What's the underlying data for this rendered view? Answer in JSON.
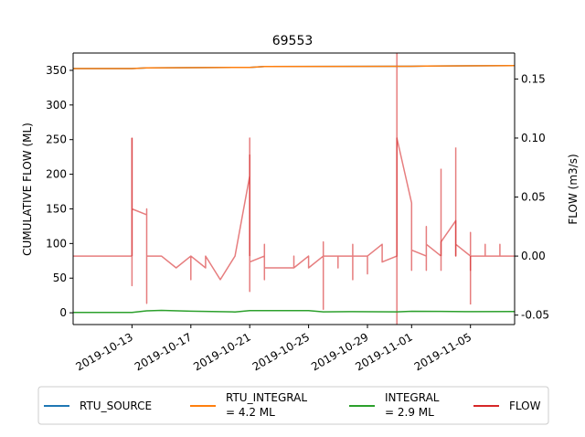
{
  "chart_data": {
    "type": "line",
    "title": "69553",
    "xlabel": "",
    "ylabel_left": "CUMULATIVE FLOW (ML)",
    "ylabel_right": "FLOW (m3/s)",
    "x_range": [
      "2019-10-09",
      "2019-11-08"
    ],
    "ylim_left": [
      -17,
      375
    ],
    "ylim_right": [
      -0.058,
      0.172
    ],
    "x_ticks": [
      "2019-10-13",
      "2019-10-17",
      "2019-10-21",
      "2019-10-25",
      "2019-10-29",
      "2019-11-01",
      "2019-11-05"
    ],
    "y_ticks_left": [
      0,
      50,
      100,
      150,
      200,
      250,
      300,
      350
    ],
    "y_ticks_right": [
      "-0.05",
      "0.00",
      "0.05",
      "0.10",
      "0.15"
    ],
    "grid": false,
    "legend_position": "bottom-center",
    "colors": {
      "RTU_SOURCE": "#1f77b4",
      "RTU_INTEGRAL": "#ff7f0e",
      "INTEGRAL": "#2ca02c",
      "FLOW": "#d62728"
    },
    "series": [
      {
        "name": "RTU_SOURCE",
        "axis": "left",
        "x": [
          "2019-10-09",
          "2019-10-13",
          "2019-10-14",
          "2019-10-21",
          "2019-10-22",
          "2019-11-01",
          "2019-11-02",
          "2019-11-08"
        ],
        "values": [
          352.5,
          352.5,
          353.5,
          354.3,
          355.6,
          355.9,
          356.3,
          356.8
        ]
      },
      {
        "name": "RTU_INTEGRAL",
        "legend_label": [
          "RTU_INTEGRAL",
          "= 4.2 ML"
        ],
        "axis": "left",
        "x": [
          "2019-10-09",
          "2019-10-13",
          "2019-10-14",
          "2019-10-21",
          "2019-10-22",
          "2019-11-01",
          "2019-11-02",
          "2019-11-08"
        ],
        "values": [
          352.5,
          352.5,
          353.5,
          354.3,
          355.6,
          355.9,
          356.3,
          356.8
        ]
      },
      {
        "name": "INTEGRAL",
        "legend_label": [
          "INTEGRAL",
          "= 2.9 ML"
        ],
        "axis": "left",
        "x": [
          "2019-10-09",
          "2019-10-13",
          "2019-10-14",
          "2019-10-15",
          "2019-10-17",
          "2019-10-20",
          "2019-10-21",
          "2019-10-22",
          "2019-10-25",
          "2019-10-26",
          "2019-10-28",
          "2019-10-31",
          "2019-11-01",
          "2019-11-03",
          "2019-11-05",
          "2019-11-08"
        ],
        "values": [
          0.4,
          0.6,
          2.8,
          3.4,
          2.3,
          1.2,
          3.2,
          3.0,
          3.0,
          1.3,
          1.6,
          1.3,
          2.2,
          2.0,
          1.6,
          1.8
        ]
      },
      {
        "name": "FLOW",
        "axis": "right",
        "x": [
          "2019-10-09",
          "2019-10-13",
          "2019-10-13",
          "2019-10-13",
          "2019-10-13",
          "2019-10-13",
          "2019-10-13",
          "2019-10-13",
          "2019-10-13",
          "2019-10-13",
          "2019-10-13",
          "2019-10-13",
          "2019-10-13",
          "2019-10-13",
          "2019-10-13",
          "2019-10-14",
          "2019-10-14",
          "2019-10-14",
          "2019-10-14",
          "2019-10-14",
          "2019-10-14",
          "2019-10-14",
          "2019-10-14",
          "2019-10-14",
          "2019-10-15",
          "2019-10-15",
          "2019-10-15",
          "2019-10-15",
          "2019-10-16",
          "2019-10-16",
          "2019-10-17",
          "2019-10-17",
          "2019-10-17",
          "2019-10-17",
          "2019-10-17",
          "2019-10-17",
          "2019-10-17",
          "2019-10-17",
          "2019-10-18",
          "2019-10-18",
          "2019-10-18",
          "2019-10-19",
          "2019-10-20",
          "2019-10-20",
          "2019-10-20",
          "2019-10-20",
          "2019-10-20",
          "2019-10-20",
          "2019-10-21",
          "2019-10-21",
          "2019-10-21",
          "2019-10-21",
          "2019-10-21",
          "2019-10-21",
          "2019-10-21",
          "2019-10-21",
          "2019-10-21",
          "2019-10-21",
          "2019-10-21",
          "2019-10-21",
          "2019-10-21",
          "2019-10-21",
          "2019-10-21",
          "2019-10-21",
          "2019-10-21",
          "2019-10-21",
          "2019-10-21",
          "2019-10-22",
          "2019-10-22",
          "2019-10-22",
          "2019-10-22",
          "2019-10-22",
          "2019-10-22",
          "2019-10-22",
          "2019-10-22",
          "2019-10-23",
          "2019-10-23",
          "2019-10-23",
          "2019-10-23",
          "2019-10-24",
          "2019-10-24",
          "2019-10-24",
          "2019-10-24",
          "2019-10-25",
          "2019-10-25",
          "2019-10-25",
          "2019-10-25",
          "2019-10-25",
          "2019-10-26",
          "2019-10-26",
          "2019-10-26",
          "2019-10-26",
          "2019-10-27",
          "2019-10-27",
          "2019-10-27",
          "2019-10-27",
          "2019-10-28",
          "2019-10-28",
          "2019-10-28",
          "2019-10-28",
          "2019-10-28",
          "2019-10-29",
          "2019-10-29",
          "2019-10-29",
          "2019-10-29",
          "2019-10-30",
          "2019-10-30",
          "2019-10-30",
          "2019-10-30",
          "2019-10-31",
          "2019-10-31",
          "2019-10-31",
          "2019-10-31",
          "2019-10-31",
          "2019-10-31",
          "2019-10-31",
          "2019-10-31",
          "2019-10-31",
          "2019-10-31",
          "2019-10-31",
          "2019-10-31",
          "2019-11-01",
          "2019-11-01",
          "2019-11-01",
          "2019-11-01",
          "2019-11-01",
          "2019-11-01",
          "2019-11-01",
          "2019-11-01",
          "2019-11-01",
          "2019-11-01",
          "2019-11-02",
          "2019-11-02",
          "2019-11-02",
          "2019-11-02",
          "2019-11-02",
          "2019-11-02",
          "2019-11-02",
          "2019-11-02",
          "2019-11-02",
          "2019-11-03",
          "2019-11-03",
          "2019-11-03",
          "2019-11-03",
          "2019-11-03",
          "2019-11-03",
          "2019-11-03",
          "2019-11-04",
          "2019-11-04",
          "2019-11-04",
          "2019-11-04",
          "2019-11-04",
          "2019-11-04",
          "2019-11-04",
          "2019-11-04",
          "2019-11-04",
          "2019-11-05",
          "2019-11-05",
          "2019-11-05",
          "2019-11-05",
          "2019-11-05",
          "2019-11-05",
          "2019-11-06",
          "2019-11-06",
          "2019-11-06",
          "2019-11-06",
          "2019-11-06",
          "2019-11-07",
          "2019-11-07",
          "2019-11-07",
          "2019-11-07",
          "2019-11-08"
        ],
        "values": [
          0.0,
          0.0,
          0.038,
          0.015,
          0.07,
          0.02,
          0.1,
          -0.01,
          0.065,
          0.005,
          0.06,
          0.0,
          0.06,
          -0.025,
          0.04,
          0.035,
          0.0,
          -0.04,
          0.04,
          0.0,
          0.03,
          0.0,
          0.005,
          0.0,
          0.0,
          0.0,
          0.0,
          0.0,
          -0.01,
          -0.01,
          0.0,
          -0.02,
          0.0,
          0.0,
          -0.01,
          0.0,
          0.0,
          0.0,
          -0.01,
          -0.01,
          0.0,
          -0.02,
          0.0,
          0.0,
          0.0,
          0.0,
          0.0,
          0.0,
          0.068,
          0.02,
          0.055,
          -0.025,
          0.055,
          0.1,
          -0.025,
          0.048,
          0.03,
          0.045,
          -0.03,
          0.05,
          -0.02,
          0.035,
          -0.015,
          0.035,
          -0.028,
          0.03,
          -0.005,
          0.0,
          0.005,
          -0.02,
          0.0,
          0.01,
          0.008,
          -0.01,
          -0.01,
          -0.01,
          -0.01,
          -0.01,
          -0.01,
          -0.01,
          0.0,
          -0.01,
          -0.01,
          0.0,
          -0.01,
          0.0,
          -0.01,
          -0.01,
          0.0,
          0.012,
          -0.045,
          0.0,
          0.0,
          -0.01,
          0.0,
          0.0,
          0.0,
          0.01,
          -0.01,
          -0.02,
          0.0,
          0.0,
          -0.015,
          0.0,
          0.0,
          0.01,
          0.0,
          0.0,
          -0.005,
          0.0,
          0.01,
          0.0,
          0.013,
          0.005,
          0.01,
          0.025,
          0.0,
          0.0,
          0.012,
          0.0,
          0.1,
          0.045,
          0.03,
          0.02,
          0.0,
          0.028,
          0.022,
          -0.012,
          0.0,
          0.0,
          0.005,
          0.0,
          0.012,
          -0.012,
          0.01,
          0.0,
          0.025,
          -0.012,
          0.0,
          0.01,
          0.0,
          -0.012,
          0.0,
          0.0,
          -0.012,
          0.0,
          0.012,
          0.03,
          0.0,
          0.025,
          0.01,
          0.02,
          0.0,
          0.013,
          0.0,
          0.01,
          0.0,
          0.0,
          -0.012,
          0.0,
          0.02,
          0.0,
          0.0,
          0.0,
          0.01,
          0.0,
          0.0,
          0.0,
          0.01,
          0.0,
          0.0,
          0.0
        ],
        "spikes": [
          {
            "x": "2019-10-13",
            "value": 0.1
          },
          {
            "x": "2019-10-21",
            "value": 0.086
          },
          {
            "x": "2019-10-31",
            "value": 0.172
          },
          {
            "x": "2019-10-31",
            "value": -0.058
          },
          {
            "x": "2019-11-03",
            "value": 0.074
          },
          {
            "x": "2019-11-04",
            "value": 0.092
          },
          {
            "x": "2019-11-05",
            "value": -0.041
          }
        ]
      }
    ]
  }
}
